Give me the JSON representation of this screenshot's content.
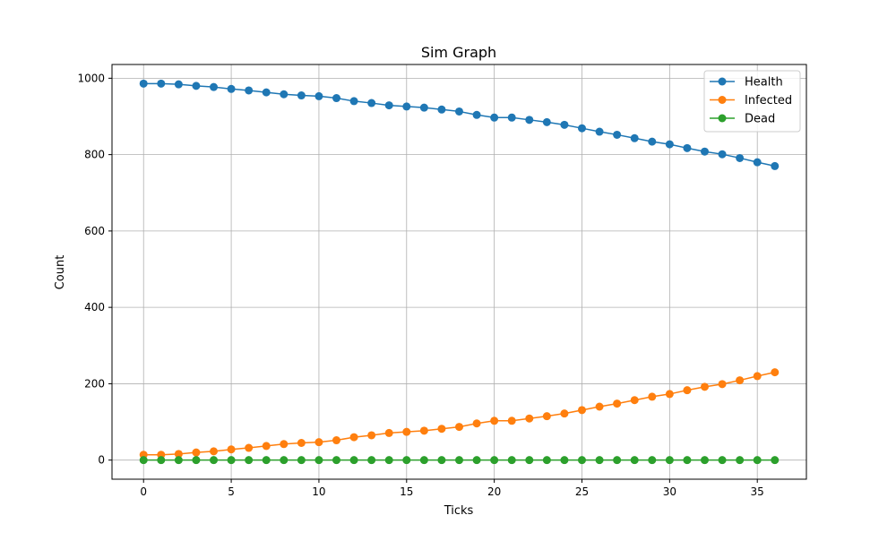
{
  "chart_data": {
    "type": "line",
    "title": "Sim Graph",
    "xlabel": "Ticks",
    "ylabel": "Count",
    "xlim": [
      -1.8,
      37.8
    ],
    "ylim": [
      -50,
      1036
    ],
    "grid": true,
    "legend_position": "top-right",
    "x_ticks": [
      0,
      5,
      10,
      15,
      20,
      25,
      30,
      35
    ],
    "y_ticks": [
      0,
      200,
      400,
      600,
      800,
      1000
    ],
    "x": [
      0,
      1,
      2,
      3,
      4,
      5,
      6,
      7,
      8,
      9,
      10,
      11,
      12,
      13,
      14,
      15,
      16,
      17,
      18,
      19,
      20,
      21,
      22,
      23,
      24,
      25,
      26,
      27,
      28,
      29,
      30,
      31,
      32,
      33,
      34,
      35,
      36
    ],
    "series": [
      {
        "name": "Health",
        "color": "#1f77b4",
        "values": [
          986,
          986,
          984,
          980,
          977,
          972,
          968,
          963,
          958,
          955,
          953,
          948,
          940,
          935,
          929,
          926,
          923,
          918,
          913,
          904,
          897,
          897,
          891,
          885,
          878,
          869,
          860,
          852,
          843,
          834,
          827,
          817,
          808,
          801,
          791,
          780,
          770
        ]
      },
      {
        "name": "Infected",
        "color": "#ff7f0e",
        "values": [
          14,
          14,
          16,
          20,
          23,
          28,
          32,
          37,
          42,
          45,
          47,
          52,
          60,
          65,
          71,
          74,
          77,
          82,
          87,
          96,
          103,
          103,
          109,
          115,
          122,
          131,
          140,
          148,
          157,
          166,
          173,
          183,
          192,
          199,
          209,
          220,
          230
        ]
      },
      {
        "name": "Dead",
        "color": "#2ca02c",
        "values": [
          0,
          0,
          0,
          0,
          0,
          0,
          0,
          0,
          0,
          0,
          0,
          0,
          0,
          0,
          0,
          0,
          0,
          0,
          0,
          0,
          0,
          0,
          0,
          0,
          0,
          0,
          0,
          0,
          0,
          0,
          0,
          0,
          0,
          0,
          0,
          0,
          0
        ]
      }
    ]
  }
}
